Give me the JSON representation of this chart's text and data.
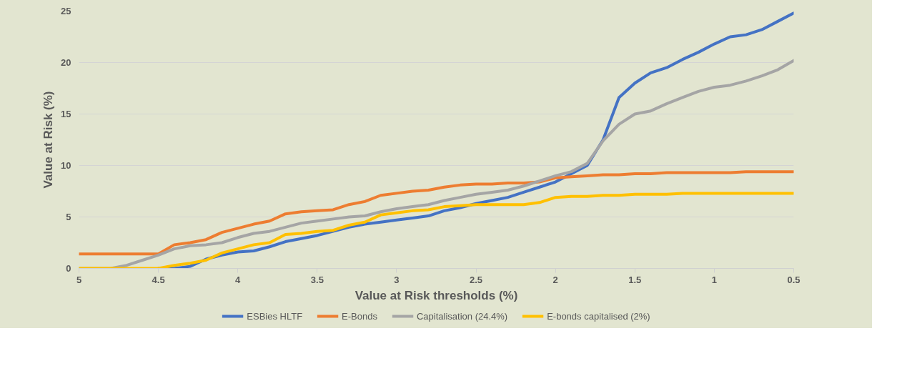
{
  "chart_data": {
    "type": "line",
    "xlabel": "Value at Risk thresholds (%)",
    "ylabel": "Value at Risk (%)",
    "x": [
      5.0,
      4.9,
      4.8,
      4.7,
      4.6,
      4.5,
      4.4,
      4.3,
      4.2,
      4.1,
      4.0,
      3.9,
      3.8,
      3.7,
      3.6,
      3.5,
      3.4,
      3.3,
      3.2,
      3.1,
      3.0,
      2.9,
      2.8,
      2.7,
      2.6,
      2.5,
      2.4,
      2.3,
      2.2,
      2.1,
      2.0,
      1.9,
      1.8,
      1.7,
      1.6,
      1.5,
      1.4,
      1.3,
      1.2,
      1.1,
      1.0,
      0.9,
      0.8,
      0.7,
      0.6,
      0.5
    ],
    "xlim": [
      5,
      0.5
    ],
    "xticks": [
      5,
      4.5,
      4,
      3.5,
      3,
      2.5,
      2,
      1.5,
      1,
      0.5
    ],
    "ylim": [
      0,
      25
    ],
    "yticks": [
      0,
      5,
      10,
      15,
      20,
      25
    ],
    "grid": "y",
    "legend": "bottom",
    "line_style": "solid",
    "marker": "none",
    "series": [
      {
        "name": "ESBies HLTF",
        "color": "#4472c4",
        "values": [
          null,
          null,
          null,
          null,
          null,
          0,
          0,
          0.2,
          0.9,
          1.3,
          1.6,
          1.7,
          2.1,
          2.6,
          2.9,
          3.2,
          3.6,
          4.0,
          4.3,
          4.5,
          4.7,
          4.9,
          5.1,
          5.6,
          5.9,
          6.3,
          6.6,
          6.9,
          7.4,
          7.9,
          8.4,
          9.2,
          10.0,
          12.5,
          16.6,
          18.0,
          19.0,
          19.5,
          20.3,
          21.0,
          21.8,
          22.5,
          22.7,
          23.2,
          24.0,
          24.8
        ]
      },
      {
        "name": "E-Bonds",
        "color": "#ed7d31",
        "values": [
          1.4,
          1.4,
          1.4,
          1.4,
          1.4,
          1.4,
          2.3,
          2.5,
          2.8,
          3.5,
          3.9,
          4.3,
          4.6,
          5.3,
          5.5,
          5.6,
          5.7,
          6.2,
          6.5,
          7.1,
          7.3,
          7.5,
          7.6,
          7.9,
          8.1,
          8.2,
          8.2,
          8.3,
          8.3,
          8.4,
          8.8,
          8.9,
          9.0,
          9.1,
          9.1,
          9.2,
          9.2,
          9.3,
          9.3,
          9.3,
          9.3,
          9.3,
          9.4,
          9.4,
          9.4,
          9.4
        ]
      },
      {
        "name": "Capitalisation (24.4%)",
        "color": "#a5a5a5",
        "values": [
          0,
          0,
          0,
          0.3,
          0.8,
          1.3,
          1.9,
          2.2,
          2.3,
          2.5,
          3.0,
          3.4,
          3.6,
          4.0,
          4.4,
          4.6,
          4.8,
          5.0,
          5.1,
          5.5,
          5.8,
          6.0,
          6.2,
          6.6,
          6.9,
          7.2,
          7.4,
          7.6,
          8.0,
          8.5,
          9.0,
          9.4,
          10.2,
          12.4,
          14.0,
          15.0,
          15.3,
          16.0,
          16.6,
          17.2,
          17.6,
          17.8,
          18.2,
          18.7,
          19.3,
          20.2
        ]
      },
      {
        "name": "E-bonds capitalised (2%)",
        "color": "#ffc000",
        "values": [
          0,
          0,
          0,
          0,
          0,
          0,
          0.3,
          0.5,
          0.8,
          1.5,
          1.9,
          2.3,
          2.5,
          3.3,
          3.4,
          3.6,
          3.7,
          4.2,
          4.5,
          5.2,
          5.4,
          5.6,
          5.7,
          6.0,
          6.1,
          6.2,
          6.2,
          6.2,
          6.2,
          6.4,
          6.9,
          7.0,
          7.0,
          7.1,
          7.1,
          7.2,
          7.2,
          7.2,
          7.3,
          7.3,
          7.3,
          7.3,
          7.3,
          7.3,
          7.3,
          7.3
        ]
      }
    ]
  }
}
